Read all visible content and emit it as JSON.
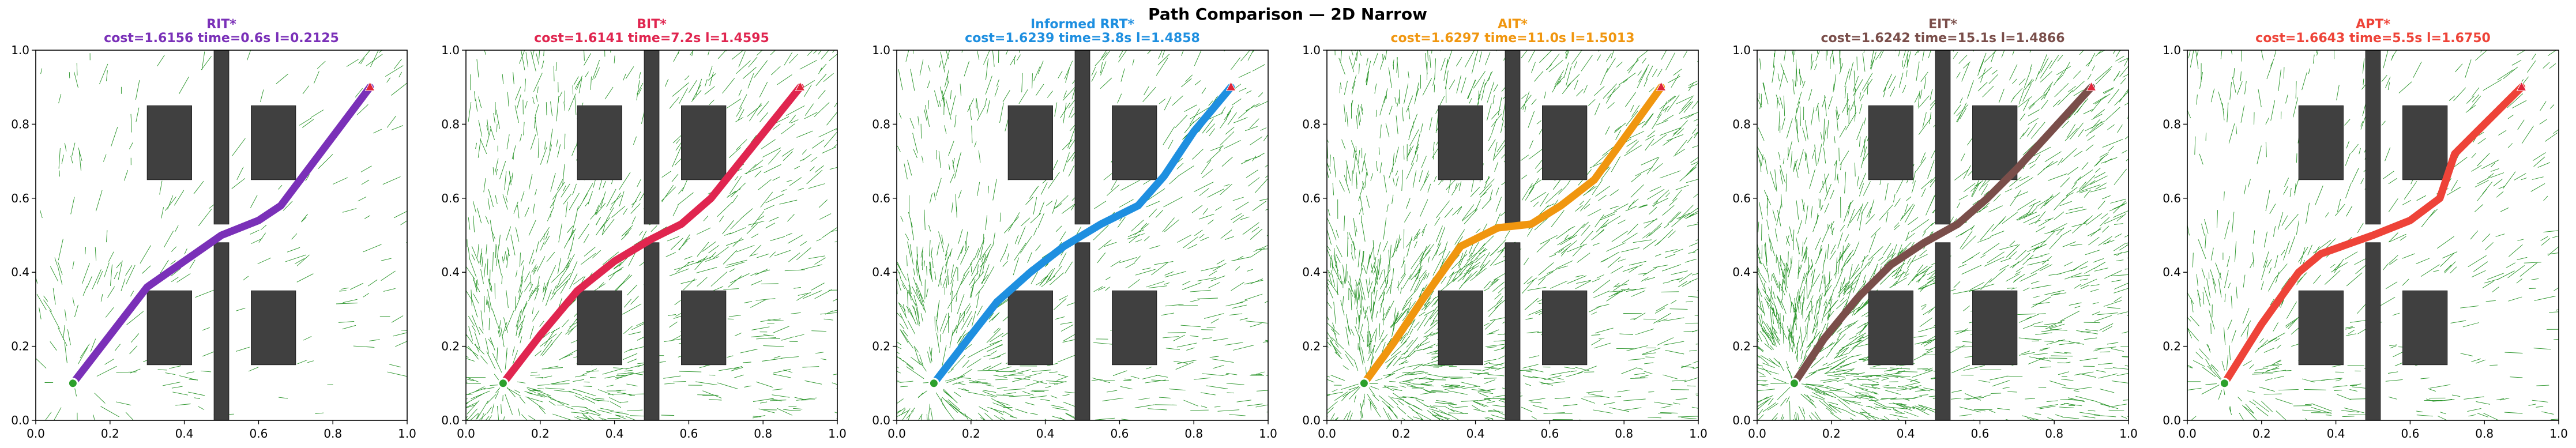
{
  "figure_title": "Path Comparison — 2D Narrow",
  "chart_data": {
    "type": "line",
    "shared": {
      "xlim": [
        0,
        1
      ],
      "ylim": [
        0,
        1
      ],
      "xticks": [
        "0.0",
        "0.2",
        "0.4",
        "0.6",
        "0.8",
        "1.0"
      ],
      "yticks": [
        "0.0",
        "0.2",
        "0.4",
        "0.6",
        "0.8",
        "1.0"
      ],
      "start": [
        0.1,
        0.1
      ],
      "goal": [
        0.9,
        0.9
      ],
      "obstacles": [
        [
          0.3,
          0.65,
          0.12,
          0.2
        ],
        [
          0.58,
          0.65,
          0.12,
          0.2
        ],
        [
          0.3,
          0.15,
          0.12,
          0.2
        ],
        [
          0.58,
          0.15,
          0.12,
          0.2
        ],
        [
          0.48,
          0.0,
          0.04,
          0.48
        ],
        [
          0.48,
          0.53,
          0.04,
          0.47
        ]
      ],
      "tree_color": "#008000",
      "obstacle_color": "#404040"
    },
    "panels": [
      {
        "title": "RIT*",
        "subtitle": "cost=1.6156  time=0.6s  l=0.2125",
        "color": "#7a30b8",
        "tree_density": 0.25,
        "path": [
          [
            0.1,
            0.1
          ],
          [
            0.3,
            0.36
          ],
          [
            0.4,
            0.43
          ],
          [
            0.5,
            0.5
          ],
          [
            0.6,
            0.54
          ],
          [
            0.66,
            0.58
          ],
          [
            0.9,
            0.9
          ]
        ]
      },
      {
        "title": "BIT*",
        "subtitle": "cost=1.6141  time=7.2s  l=1.4595",
        "color": "#e0254f",
        "tree_density": 1.0,
        "path": [
          [
            0.1,
            0.1
          ],
          [
            0.2,
            0.23
          ],
          [
            0.3,
            0.35
          ],
          [
            0.4,
            0.43
          ],
          [
            0.5,
            0.49
          ],
          [
            0.58,
            0.53
          ],
          [
            0.66,
            0.6
          ],
          [
            0.9,
            0.9
          ]
        ]
      },
      {
        "title": "Informed RRT*",
        "subtitle": "cost=1.6239  time=3.8s  l=1.4858",
        "color": "#1e8fe0",
        "tree_density": 0.9,
        "path": [
          [
            0.1,
            0.1
          ],
          [
            0.2,
            0.23
          ],
          [
            0.27,
            0.32
          ],
          [
            0.36,
            0.4
          ],
          [
            0.45,
            0.47
          ],
          [
            0.55,
            0.53
          ],
          [
            0.65,
            0.58
          ],
          [
            0.72,
            0.66
          ],
          [
            0.8,
            0.78
          ],
          [
            0.9,
            0.9
          ]
        ]
      },
      {
        "title": "AIT*",
        "subtitle": "cost=1.6297  time=11.0s  l=1.5013",
        "color": "#f0960f",
        "tree_density": 1.4,
        "path": [
          [
            0.1,
            0.1
          ],
          [
            0.18,
            0.21
          ],
          [
            0.26,
            0.33
          ],
          [
            0.36,
            0.47
          ],
          [
            0.46,
            0.52
          ],
          [
            0.55,
            0.53
          ],
          [
            0.63,
            0.58
          ],
          [
            0.72,
            0.65
          ],
          [
            0.9,
            0.9
          ]
        ]
      },
      {
        "title": "EIT*",
        "subtitle": "cost=1.6242  time=15.1s  l=1.4866",
        "color": "#7a4e4a",
        "tree_density": 1.6,
        "path": [
          [
            0.1,
            0.1
          ],
          [
            0.18,
            0.22
          ],
          [
            0.27,
            0.33
          ],
          [
            0.36,
            0.42
          ],
          [
            0.45,
            0.48
          ],
          [
            0.54,
            0.53
          ],
          [
            0.62,
            0.6
          ],
          [
            0.7,
            0.68
          ],
          [
            0.9,
            0.9
          ]
        ]
      },
      {
        "title": "APT*",
        "subtitle": "cost=1.6643  time=5.5s  l=1.6750",
        "color": "#ee4338",
        "tree_density": 0.55,
        "path": [
          [
            0.1,
            0.1
          ],
          [
            0.2,
            0.26
          ],
          [
            0.3,
            0.4
          ],
          [
            0.36,
            0.45
          ],
          [
            0.5,
            0.5
          ],
          [
            0.6,
            0.54
          ],
          [
            0.68,
            0.6
          ],
          [
            0.72,
            0.72
          ],
          [
            0.76,
            0.76
          ],
          [
            0.8,
            0.8
          ],
          [
            0.9,
            0.9
          ]
        ]
      }
    ]
  }
}
